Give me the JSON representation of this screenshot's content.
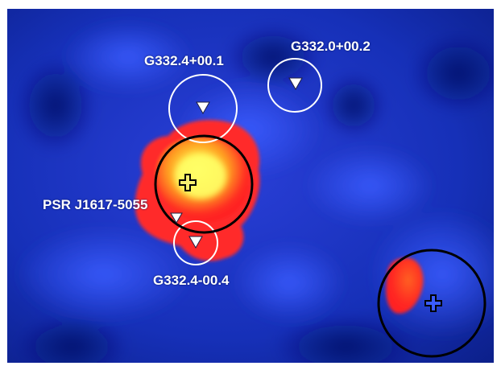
{
  "image": {
    "description_free": true,
    "colors": {
      "background": "#0a1f8c",
      "emission_core": "#ffff60",
      "emission_mid": "#ff9a20",
      "emission_edge": "#ff2020",
      "halo": "#ff30a0"
    }
  },
  "labels": {
    "snr_1": "G332.4+00.1",
    "snr_2": "G332.0+00.2",
    "pulsar": "PSR J1617-5055",
    "snr_3": "G332.4-00.4"
  }
}
